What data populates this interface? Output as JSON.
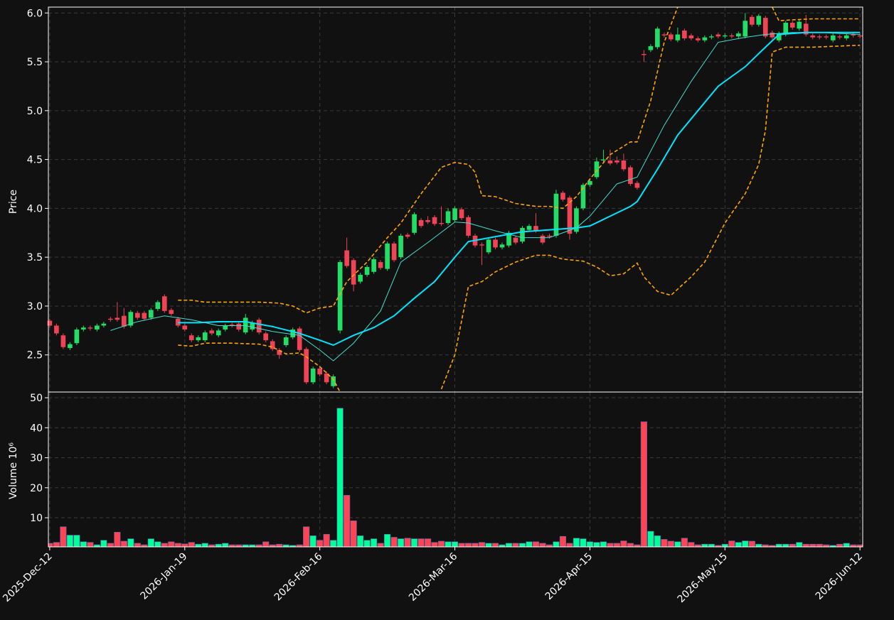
{
  "chart_data": [
    {
      "type": "candlestick",
      "ylabel": "Price",
      "up_color": "#22dd66",
      "down_color": "#ee4455",
      "xlim": [
        -0.2,
        120.4
      ],
      "xticks": [
        {
          "value": 0,
          "label": "2025-Dec-12"
        },
        {
          "value": 20,
          "label": "2026-Jan-19"
        },
        {
          "value": 40,
          "label": "2026-Feb-16"
        },
        {
          "value": 60,
          "label": "2026-Mar-16"
        },
        {
          "value": 80,
          "label": "2026-Apr-15"
        },
        {
          "value": 100,
          "label": "2026-May-15"
        },
        {
          "value": 120,
          "label": "2026-Jun-12"
        }
      ],
      "ylim": [
        2.12,
        6.06
      ],
      "yticks": [
        2.5,
        {
          "value": 3,
          "label": "3.0"
        },
        3.5,
        {
          "value": 4,
          "label": "4.0"
        },
        4.5,
        {
          "value": 5,
          "label": "5.0"
        },
        5.5,
        {
          "value": 6,
          "label": "6.0"
        }
      ],
      "grid": true,
      "open": [
        2.85,
        2.8,
        2.7,
        2.57,
        2.62,
        2.76,
        2.78,
        2.76,
        2.8,
        2.87,
        2.88,
        2.9,
        2.8,
        2.93,
        2.93,
        2.88,
        2.97,
        3.1,
        2.96,
        2.87,
        2.8,
        2.7,
        2.65,
        2.65,
        2.75,
        2.7,
        2.76,
        2.81,
        2.82,
        2.73,
        2.76,
        2.86,
        2.72,
        2.64,
        2.55,
        2.6,
        2.68,
        2.77,
        2.56,
        2.22,
        2.36,
        2.31,
        2.18,
        2.75,
        3.57,
        3.47,
        3.25,
        3.32,
        3.35,
        3.45,
        3.38,
        3.64,
        3.5,
        3.73,
        3.75,
        3.88,
        3.88,
        3.91,
        3.85,
        3.85,
        3.88,
        3.99,
        3.91,
        3.72,
        3.63,
        3.55,
        3.68,
        3.6,
        3.62,
        3.7,
        3.66,
        3.78,
        3.82,
        3.72,
        3.72,
        3.72,
        4.16,
        4.11,
        3.76,
        4.0,
        4.24,
        4.32,
        4.49,
        4.49,
        4.49,
        4.49,
        4.42,
        4.26,
        5.58,
        5.62,
        5.65,
        5.78,
        5.78,
        5.72,
        5.82,
        5.77,
        5.74,
        5.72,
        5.75,
        5.78,
        5.76,
        5.77,
        5.76,
        5.76,
        5.96,
        5.88,
        5.95,
        5.8,
        5.72,
        5.78,
        5.9,
        5.84,
        5.89,
        5.77,
        5.76,
        5.76,
        5.72,
        5.76,
        5.74,
        5.78,
        5.77
      ],
      "high": [
        2.87,
        2.82,
        2.72,
        2.63,
        2.78,
        2.8,
        2.8,
        2.82,
        2.84,
        2.89,
        3.04,
        2.98,
        2.96,
        2.95,
        2.95,
        2.98,
        3.06,
        3.12,
        2.98,
        2.89,
        2.82,
        2.72,
        2.7,
        2.75,
        2.77,
        2.77,
        2.82,
        2.83,
        2.84,
        2.92,
        2.85,
        2.88,
        2.74,
        2.66,
        2.57,
        2.7,
        2.78,
        2.79,
        2.58,
        2.38,
        2.38,
        2.33,
        2.3,
        3.47,
        3.7,
        3.49,
        3.34,
        3.42,
        3.5,
        3.47,
        3.66,
        3.66,
        3.74,
        3.75,
        3.96,
        3.9,
        3.92,
        3.93,
        4.02,
        4.0,
        4.02,
        4.01,
        3.93,
        3.74,
        3.65,
        3.7,
        3.7,
        3.65,
        3.77,
        3.72,
        3.82,
        3.84,
        3.95,
        3.74,
        3.74,
        4.19,
        4.18,
        4.13,
        4.02,
        4.26,
        4.3,
        4.52,
        4.6,
        4.6,
        4.53,
        4.56,
        4.44,
        4.28,
        5.62,
        5.68,
        5.86,
        5.8,
        5.8,
        5.85,
        5.84,
        5.79,
        5.76,
        5.77,
        5.78,
        5.8,
        5.79,
        5.79,
        5.81,
        6.0,
        5.98,
        5.99,
        5.97,
        5.82,
        5.81,
        5.92,
        5.92,
        5.93,
        5.98,
        5.79,
        5.78,
        5.78,
        5.79,
        5.78,
        5.79,
        5.8,
        5.79
      ],
      "low": [
        2.78,
        2.7,
        2.56,
        2.55,
        2.6,
        2.74,
        2.75,
        2.74,
        2.78,
        2.84,
        2.84,
        2.77,
        2.78,
        2.86,
        2.85,
        2.86,
        2.95,
        2.93,
        2.9,
        2.78,
        2.74,
        2.63,
        2.63,
        2.63,
        2.7,
        2.68,
        2.74,
        2.78,
        2.74,
        2.71,
        2.74,
        2.71,
        2.63,
        2.54,
        2.46,
        2.58,
        2.66,
        2.53,
        2.2,
        2.2,
        2.28,
        2.2,
        2.16,
        2.72,
        3.39,
        3.15,
        3.23,
        3.3,
        3.33,
        3.37,
        3.36,
        3.45,
        3.48,
        3.69,
        3.73,
        3.8,
        3.84,
        3.82,
        3.82,
        3.83,
        3.86,
        3.88,
        3.7,
        3.6,
        3.42,
        3.53,
        3.58,
        3.58,
        3.6,
        3.63,
        3.64,
        3.76,
        3.75,
        3.63,
        3.69,
        3.7,
        4.07,
        3.68,
        3.74,
        3.98,
        4.22,
        4.3,
        4.47,
        4.44,
        4.45,
        4.38,
        4.23,
        4.19,
        5.5,
        5.6,
        5.63,
        5.75,
        5.71,
        5.7,
        5.72,
        5.72,
        5.7,
        5.7,
        5.73,
        5.74,
        5.74,
        5.74,
        5.74,
        5.74,
        5.86,
        5.86,
        5.74,
        5.73,
        5.7,
        5.76,
        5.83,
        5.82,
        5.76,
        5.73,
        5.73,
        5.73,
        5.7,
        5.73,
        5.72,
        5.75,
        5.74
      ],
      "close": [
        2.8,
        2.72,
        2.58,
        2.61,
        2.76,
        2.78,
        2.77,
        2.8,
        2.82,
        2.86,
        2.86,
        2.79,
        2.94,
        2.88,
        2.87,
        2.96,
        3.04,
        2.95,
        2.92,
        2.8,
        2.76,
        2.65,
        2.68,
        2.73,
        2.72,
        2.75,
        2.8,
        2.8,
        2.76,
        2.88,
        2.83,
        2.73,
        2.65,
        2.56,
        2.5,
        2.68,
        2.76,
        2.55,
        2.22,
        2.36,
        2.3,
        2.22,
        2.28,
        3.45,
        3.41,
        3.22,
        3.32,
        3.4,
        3.48,
        3.39,
        3.64,
        3.47,
        3.72,
        3.71,
        3.94,
        3.82,
        3.86,
        3.84,
        3.84,
        3.97,
        4.0,
        3.9,
        3.72,
        3.62,
        3.62,
        3.68,
        3.6,
        3.63,
        3.75,
        3.65,
        3.8,
        3.82,
        3.77,
        3.65,
        3.71,
        4.15,
        4.09,
        3.74,
        4.0,
        4.24,
        4.28,
        4.48,
        4.5,
        4.46,
        4.47,
        4.4,
        4.25,
        4.21,
        5.57,
        5.66,
        5.84,
        5.77,
        5.73,
        5.78,
        5.74,
        5.74,
        5.72,
        5.75,
        5.76,
        5.76,
        5.77,
        5.76,
        5.79,
        5.92,
        5.88,
        5.97,
        5.76,
        5.75,
        5.79,
        5.9,
        5.85,
        5.91,
        5.78,
        5.75,
        5.75,
        5.75,
        5.77,
        5.75,
        5.77,
        5.77,
        5.76
      ],
      "lines": [
        {
          "color": "#40e0d0",
          "width": 1,
          "style": "solid",
          "x": [
            9,
            13,
            17,
            21,
            25,
            29,
            33,
            37,
            40,
            42,
            45,
            49,
            52,
            56,
            60,
            62,
            66,
            70,
            74,
            78,
            80,
            84,
            87,
            91,
            95,
            99,
            103,
            106,
            110,
            114,
            120
          ],
          "values": [
            2.75,
            2.84,
            2.9,
            2.86,
            2.8,
            2.8,
            2.74,
            2.7,
            2.55,
            2.44,
            2.62,
            2.95,
            3.45,
            3.65,
            3.86,
            3.85,
            3.77,
            3.7,
            3.7,
            3.8,
            3.92,
            4.25,
            4.32,
            4.85,
            5.3,
            5.7,
            5.75,
            5.78,
            5.8,
            5.8,
            5.78
          ]
        },
        {
          "color": "#00e5ff",
          "width": 2,
          "style": "solid",
          "x": [
            19,
            22,
            25,
            29,
            33,
            37,
            40,
            42,
            45,
            48,
            51,
            54,
            57,
            60,
            62,
            66,
            70,
            74,
            78,
            80,
            83,
            86,
            87,
            90,
            93,
            96,
            99,
            103,
            106,
            108,
            112,
            120
          ],
          "values": [
            2.83,
            2.83,
            2.84,
            2.84,
            2.79,
            2.72,
            2.65,
            2.6,
            2.7,
            2.78,
            2.9,
            3.08,
            3.25,
            3.5,
            3.66,
            3.71,
            3.76,
            3.78,
            3.8,
            3.82,
            3.92,
            4.02,
            4.07,
            4.4,
            4.75,
            5.0,
            5.25,
            5.45,
            5.65,
            5.78,
            5.8,
            5.8
          ]
        },
        {
          "color": "#ffa500",
          "width": 1.6,
          "style": "dashed",
          "x": [
            19,
            21,
            23,
            27,
            31,
            34,
            36,
            38,
            40,
            42,
            44,
            47,
            50,
            52,
            55,
            58,
            60,
            62,
            63,
            64,
            66,
            69,
            72,
            74,
            76,
            78,
            80,
            83,
            86,
            87,
            89,
            91,
            93,
            100,
            107,
            108,
            110,
            113,
            120
          ],
          "values": [
            3.06,
            3.06,
            3.04,
            3.04,
            3.04,
            3.03,
            3.0,
            2.93,
            2.98,
            3.0,
            3.25,
            3.45,
            3.7,
            3.85,
            4.15,
            4.42,
            4.47,
            4.45,
            4.37,
            4.13,
            4.12,
            4.05,
            4.02,
            4.02,
            4.0,
            4.12,
            4.3,
            4.55,
            4.68,
            4.68,
            5.1,
            5.7,
            6.06,
            null,
            6.06,
            5.92,
            5.93,
            5.94,
            5.94
          ]
        },
        {
          "color": "#ffa500",
          "width": 1.6,
          "style": "dashed",
          "x": [
            19,
            21,
            23,
            27,
            31,
            33,
            35,
            37,
            38,
            40,
            42,
            43,
            50,
            58,
            60,
            62,
            64,
            66,
            69,
            72,
            74,
            76,
            79,
            81,
            83,
            85,
            87,
            88,
            90,
            92,
            95,
            97,
            100,
            103,
            105,
            106,
            107,
            109,
            113,
            120
          ],
          "values": [
            2.6,
            2.59,
            2.62,
            2.62,
            2.61,
            2.58,
            2.51,
            2.52,
            2.48,
            2.38,
            2.25,
            2.12,
            null,
            2.15,
            2.5,
            3.2,
            3.25,
            3.35,
            3.45,
            3.52,
            3.52,
            3.48,
            3.46,
            3.4,
            3.31,
            3.33,
            3.44,
            3.3,
            3.15,
            3.11,
            3.3,
            3.45,
            3.85,
            4.15,
            4.45,
            4.8,
            5.6,
            5.65,
            5.65,
            5.67
          ]
        }
      ]
    },
    {
      "type": "bar",
      "ylabel": "Volume  10⁶",
      "up_color": "#00ff99",
      "down_color": "#ff4455",
      "ylim": [
        0.3,
        51.9
      ],
      "yticks": [
        10,
        20,
        30,
        40,
        50
      ],
      "grid": true,
      "values": [
        1.5,
        1.8,
        7,
        4.2,
        4.2,
        2,
        1.8,
        1,
        2.5,
        1.5,
        5.2,
        2.2,
        3,
        1.5,
        1,
        3,
        2,
        1.5,
        2,
        1.5,
        1.3,
        1.8,
        1.2,
        1.5,
        1,
        1.2,
        1.5,
        1,
        1,
        1,
        1,
        1,
        2,
        1,
        1.2,
        1,
        0.8,
        1,
        7,
        4,
        2.5,
        4.5,
        2.5,
        46.5,
        17.5,
        9,
        4,
        2.5,
        3,
        1.5,
        4.5,
        3.5,
        3,
        3.2,
        3,
        3,
        3,
        1.8,
        2.2,
        2,
        2,
        1.5,
        1.5,
        1.5,
        1.8,
        1.5,
        1.5,
        1,
        1.5,
        1.5,
        1.5,
        2,
        2,
        1.5,
        1,
        2,
        3.8,
        1.5,
        3.2,
        3,
        2,
        1.8,
        2,
        1.5,
        1.5,
        2.3,
        1.5,
        1,
        42,
        5.5,
        4,
        2.8,
        2.2,
        2,
        3.2,
        1.8,
        1,
        1.2,
        1.2,
        0.8,
        1.2,
        2.3,
        1.8,
        2.3,
        2.2,
        1.2,
        1,
        0.8,
        1.2,
        1.2,
        1.2,
        1.8,
        1.2,
        1.2,
        1.2,
        1,
        0.8,
        1.2,
        1.5,
        1,
        1
      ]
    }
  ]
}
